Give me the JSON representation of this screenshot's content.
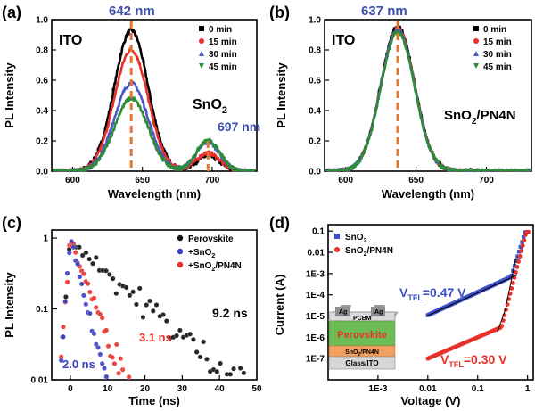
{
  "chart_data": [
    {
      "panel": "(a)",
      "type": "line",
      "xlabel": "Wavelength (nm)",
      "ylabel": "PL Intensity",
      "xlim": [
        585,
        732
      ],
      "ylim": [
        0,
        1.0
      ],
      "xticks": [
        "600",
        "650",
        "700"
      ],
      "yticks": [
        "0.0",
        "0.2",
        "0.4",
        "0.6",
        "0.8",
        "1.0"
      ],
      "legend_position": "top-right",
      "series": [
        {
          "name": "0 min",
          "color": "#000000",
          "marker": "square",
          "peak1": 0.93,
          "peak2": 0.1
        },
        {
          "name": "15 min",
          "color": "#e8312a",
          "marker": "circle",
          "peak1": 0.8,
          "peak2": 0.12
        },
        {
          "name": "30 min",
          "color": "#4a58c8",
          "marker": "triangle-up",
          "peak1": 0.58,
          "peak2": 0.19
        },
        {
          "name": "45 min",
          "color": "#2e8b3a",
          "marker": "triangle-down",
          "peak1": 0.48,
          "peak2": 0.2
        }
      ],
      "peak_centers": [
        642,
        697
      ],
      "annotations": {
        "peak1": "642 nm",
        "peak2": "697 nm",
        "substrate": "ITO",
        "material": "SnO",
        "material_sub": "2"
      }
    },
    {
      "panel": "(b)",
      "type": "line",
      "xlabel": "Wavelength (nm)",
      "ylabel": "PL Intensity",
      "xlim": [
        585,
        732
      ],
      "ylim": [
        0,
        1.0
      ],
      "xticks": [
        "600",
        "650",
        "700"
      ],
      "yticks": [
        "0.0",
        "0.2",
        "0.4",
        "0.6",
        "0.8",
        "1.0"
      ],
      "legend_position": "top-right",
      "series": [
        {
          "name": "0 min",
          "color": "#000000",
          "marker": "square",
          "peak1": 0.95
        },
        {
          "name": "15 min",
          "color": "#e8312a",
          "marker": "circle",
          "peak1": 0.94
        },
        {
          "name": "30 min",
          "color": "#4a58c8",
          "marker": "triangle-up",
          "peak1": 0.93
        },
        {
          "name": "45 min",
          "color": "#2e8b3a",
          "marker": "triangle-down",
          "peak1": 0.92
        }
      ],
      "peak_centers": [
        637
      ],
      "annotations": {
        "peak1": "637 nm",
        "substrate": "ITO",
        "material_pre": "SnO",
        "material_sub": "2",
        "material_post": "/PN4N"
      }
    },
    {
      "panel": "(c)",
      "type": "scatter",
      "xlabel": "Time (ns)",
      "ylabel": "PL Intensity",
      "xlim": [
        -5,
        50
      ],
      "ylim": [
        0.01,
        1.3
      ],
      "yscale": "log",
      "xticks": [
        "0",
        "10",
        "20",
        "30",
        "40",
        "50"
      ],
      "yticks": [
        "0.01",
        "0.1",
        "1"
      ],
      "legend_position": "top-right",
      "series": [
        {
          "name": "Perovskite",
          "color": "#111111",
          "tau_ns": 9.2
        },
        {
          "name": "+SnO",
          "name_sub": "2",
          "color": "#3b3fc4",
          "tau_ns": 2.0
        },
        {
          "name": "+SnO",
          "name_sub": "2",
          "name_post": "/PN4N",
          "color": "#e8312a",
          "tau_ns": 3.1
        }
      ],
      "annotations": {
        "tau_black": "9.2 ns",
        "tau_red": "3.1 ns",
        "tau_blue": "2.0 ns"
      }
    },
    {
      "panel": "(d)",
      "type": "scatter",
      "xlabel": "Voltage (V)",
      "ylabel": "Current (A)",
      "xscale": "log",
      "yscale": "log",
      "xlim": [
        0.0001,
        1.3
      ],
      "ylim": [
        1e-08,
        0.2
      ],
      "xticks": [
        "1E-3",
        "0.01",
        "0.1",
        "1"
      ],
      "yticks": [
        "1E-7",
        "1E-6",
        "1E-5",
        "1E-4",
        "1E-3",
        "0.01",
        "0.1"
      ],
      "legend_position": "top-left",
      "series": [
        {
          "name": "SnO",
          "name_sub": "2",
          "color": "#3b4fc8",
          "marker": "square",
          "vtfl": 0.47
        },
        {
          "name": "SnO",
          "name_sub": "2",
          "name_post": "/PN4N",
          "color": "#e8312a",
          "marker": "circle",
          "vtfl": 0.3
        }
      ],
      "annotations": {
        "vtfl_blue_pre": "V",
        "vtfl_blue_sub": "TFL",
        "vtfl_blue_val": "=0.47 V",
        "vtfl_red_pre": "V",
        "vtfl_red_sub": "TFL",
        "vtfl_red_val": "=0.30 V"
      },
      "inset": {
        "layers": [
          "Ag",
          "PCBM",
          "Ag",
          "Perovskite",
          "SnO",
          "2",
          "/PN4N",
          "Glass/ITO"
        ]
      }
    }
  ]
}
